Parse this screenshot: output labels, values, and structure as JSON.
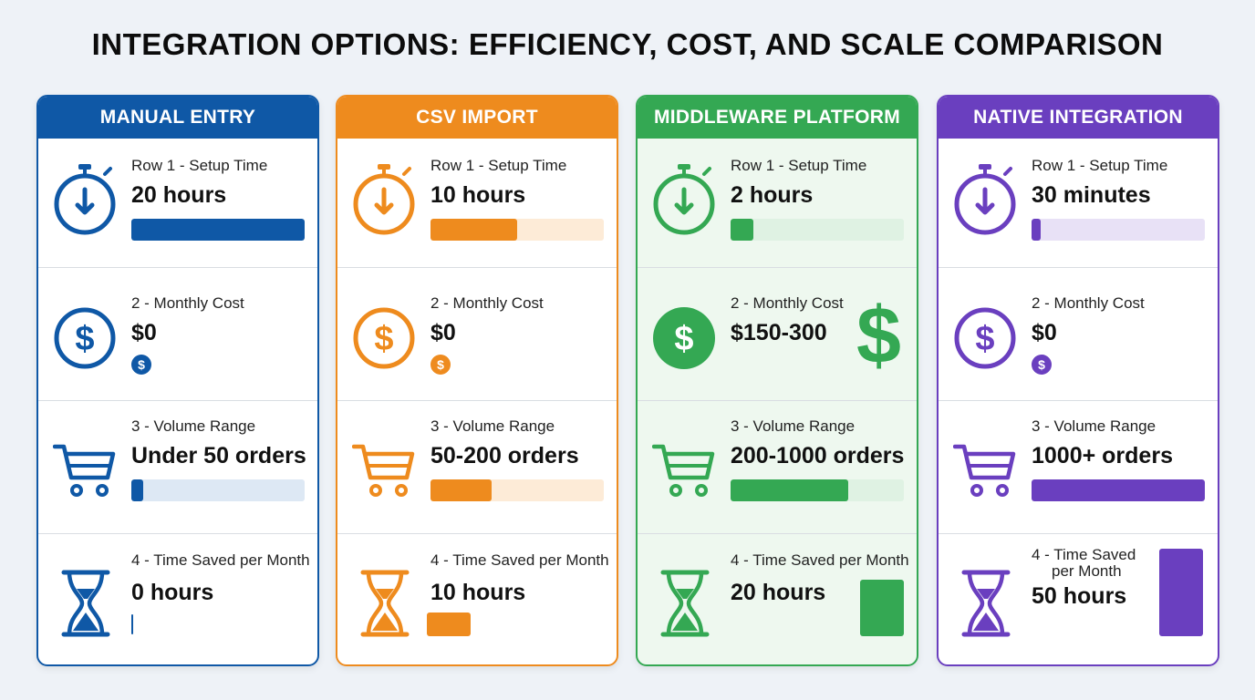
{
  "title": "INTEGRATION OPTIONS: EFFICIENCY, COST, AND SCALE COMPARISON",
  "labels": {
    "setup": "Row 1 - Setup Time",
    "cost": "2 - Monthly Cost",
    "volume": "3 - Volume Range",
    "saved": "4 - Time Saved per Month",
    "saved_line1": "4 - Time Saved",
    "saved_line2": "per Month",
    "coin_symbol": "$"
  },
  "columns": [
    {
      "name": "MANUAL ENTRY",
      "accent": "#0f58a6",
      "light": "#dde8f4",
      "bg": "#ffffff",
      "setup_value": "20 hours",
      "setup_fraction": 1.0,
      "cost_value": "$0",
      "volume_value": "Under 50 orders",
      "volume_fraction": 0.07,
      "saved_value": "0 hours",
      "saved_hours": 0
    },
    {
      "name": "CSV IMPORT",
      "accent": "#ee8b1e",
      "light": "#fdebd7",
      "bg": "#ffffff",
      "setup_value": "10 hours",
      "setup_fraction": 0.5,
      "cost_value": "$0",
      "volume_value": "50-200 orders",
      "volume_fraction": 0.35,
      "saved_value": "10 hours",
      "saved_hours": 10
    },
    {
      "name": "MIDDLEWARE PLATFORM",
      "accent": "#34a853",
      "light": "#dff2e3",
      "bg": "#eef8ef",
      "setup_value": "2 hours",
      "setup_fraction": 0.13,
      "cost_value": "$150-300",
      "volume_value": "200-1000 orders",
      "volume_fraction": 0.68,
      "saved_value": "20 hours",
      "saved_hours": 20
    },
    {
      "name": "NATIVE INTEGRATION",
      "accent": "#6a3fbf",
      "light": "#e8e1f6",
      "bg": "#ffffff",
      "setup_value": "30 minutes",
      "setup_fraction": 0.05,
      "cost_value": "$0",
      "volume_value": "1000+ orders",
      "volume_fraction": 1.0,
      "saved_value": "50 hours",
      "saved_hours": 50
    }
  ]
}
